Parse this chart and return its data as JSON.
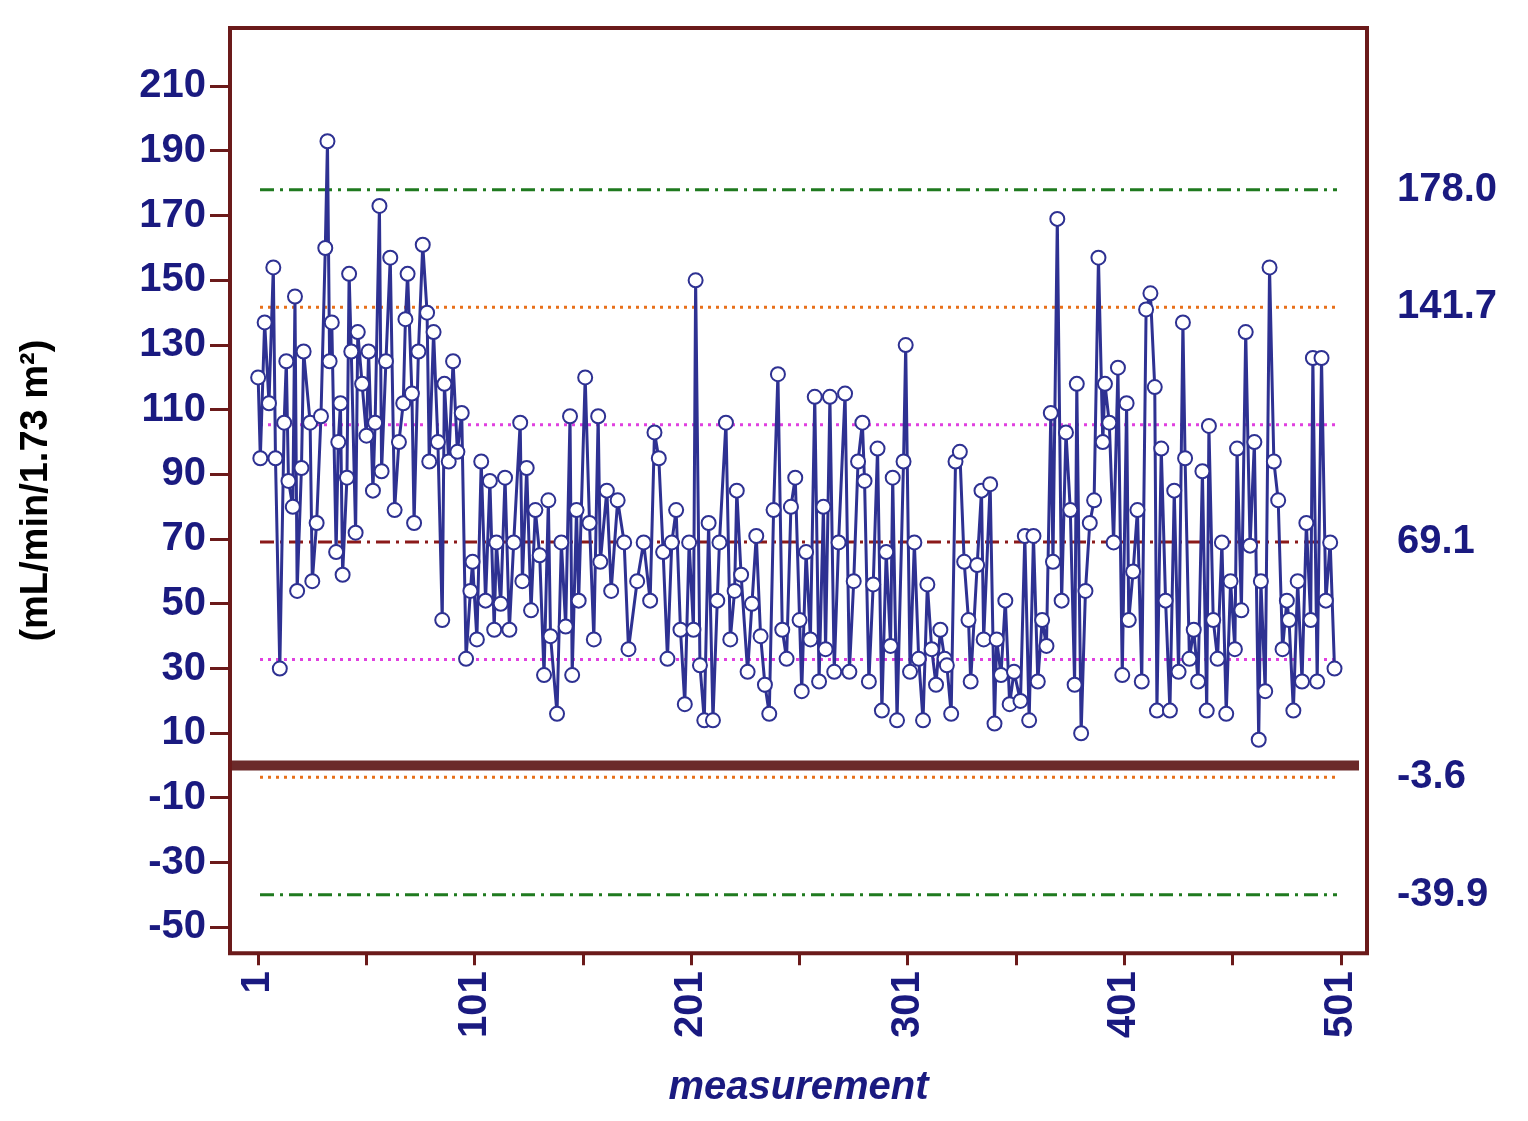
{
  "chart_data": {
    "type": "line",
    "xlabel": "measurement",
    "ylabel": "(mL/min/1.73 m²)",
    "xlim": [
      -12,
      513
    ],
    "ylim": [
      -58,
      228
    ],
    "xticks": [
      1,
      {
        "value": 51,
        "label": null
      },
      101,
      {
        "value": 151,
        "label": null
      },
      201,
      {
        "value": 251,
        "label": null
      },
      301,
      {
        "value": 351,
        "label": null
      },
      401,
      {
        "value": 451,
        "label": null
      },
      501
    ],
    "yticks": [
      -50,
      -30,
      -10,
      10,
      30,
      50,
      70,
      90,
      110,
      130,
      150,
      170,
      190,
      210
    ],
    "grid": false,
    "legend": false,
    "marker": "circle",
    "line_style": "solid",
    "series": [
      {
        "color": "#2e3192",
        "x": [
          1,
          2,
          4,
          6,
          8,
          9,
          11,
          13,
          14,
          15,
          17,
          18,
          19,
          21,
          22,
          25,
          26,
          28,
          30,
          32,
          33,
          34,
          35,
          37,
          38,
          39,
          40,
          42,
          43,
          44,
          46,
          47,
          49,
          51,
          52,
          54,
          55,
          57,
          58,
          60,
          62,
          64,
          66,
          68,
          69,
          70,
          72,
          73,
          75,
          77,
          79,
          80,
          82,
          84,
          86,
          87,
          89,
          91,
          93,
          95,
          97,
          99,
          100,
          102,
          104,
          106,
          108,
          110,
          111,
          113,
          115,
          117,
          119,
          122,
          123,
          125,
          127,
          129,
          131,
          133,
          135,
          136,
          139,
          141,
          143,
          145,
          146,
          148,
          149,
          152,
          154,
          156,
          158,
          159,
          162,
          164,
          167,
          170,
          172,
          176,
          179,
          182,
          184,
          186,
          188,
          190,
          192,
          194,
          196,
          198,
          200,
          202,
          203,
          205,
          207,
          209,
          211,
          213,
          214,
          217,
          219,
          221,
          222,
          224,
          227,
          229,
          231,
          233,
          235,
          237,
          239,
          241,
          243,
          245,
          247,
          249,
          251,
          252,
          254,
          256,
          258,
          260,
          262,
          263,
          265,
          267,
          269,
          272,
          274,
          276,
          278,
          280,
          281,
          283,
          285,
          287,
          289,
          291,
          293,
          294,
          296,
          299,
          300,
          302,
          304,
          306,
          308,
          310,
          312,
          314,
          316,
          318,
          319,
          321,
          323,
          325,
          327,
          329,
          330,
          333,
          335,
          336,
          339,
          341,
          342,
          344,
          346,
          348,
          350,
          353,
          355,
          357,
          359,
          361,
          363,
          365,
          367,
          368,
          370,
          372,
          374,
          376,
          378,
          379,
          381,
          383,
          385,
          387,
          389,
          391,
          392,
          394,
          396,
          398,
          400,
          402,
          403,
          405,
          407,
          409,
          411,
          413,
          415,
          416,
          418,
          420,
          422,
          424,
          426,
          428,
          429,
          431,
          433,
          435,
          437,
          439,
          440,
          442,
          444,
          446,
          448,
          450,
          452,
          453,
          455,
          457,
          459,
          461,
          463,
          464,
          466,
          468,
          470,
          472,
          474,
          476,
          477,
          479,
          481,
          483,
          485,
          487,
          488,
          490,
          492,
          494,
          496,
          498
        ],
        "values": [
          120,
          95,
          137,
          112,
          154,
          95,
          30,
          106,
          125,
          88,
          80,
          145,
          54,
          92,
          128,
          106,
          57,
          75,
          108,
          160,
          193,
          125,
          137,
          66,
          100,
          112,
          59,
          89,
          152,
          128,
          72,
          134,
          118,
          102,
          128,
          85,
          106,
          173,
          91,
          125,
          157,
          79,
          100,
          112,
          138,
          152,
          115,
          75,
          128,
          161,
          140,
          94,
          134,
          100,
          45,
          118,
          94,
          125,
          97,
          109,
          33,
          54,
          63,
          39,
          94,
          51,
          88,
          42,
          69,
          50,
          89,
          42,
          69,
          106,
          57,
          92,
          48,
          79,
          65,
          28,
          82,
          40,
          16,
          69,
          43,
          108,
          28,
          79,
          51,
          120,
          75,
          39,
          108,
          63,
          85,
          54,
          82,
          69,
          36,
          57,
          69,
          51,
          103,
          95,
          66,
          33,
          69,
          79,
          42,
          19,
          69,
          42,
          150,
          31,
          14,
          75,
          14,
          51,
          69,
          106,
          39,
          54,
          85,
          59,
          29,
          50,
          71,
          40,
          25,
          16,
          79,
          121,
          42,
          33,
          80,
          89,
          45,
          23,
          66,
          39,
          114,
          26,
          80,
          36,
          114,
          29,
          69,
          115,
          29,
          57,
          94,
          106,
          88,
          26,
          56,
          98,
          17,
          66,
          37,
          89,
          14,
          94,
          130,
          29,
          69,
          33,
          14,
          56,
          36,
          25,
          42,
          33,
          31,
          16,
          94,
          97,
          63,
          45,
          26,
          62,
          85,
          39,
          87,
          13,
          39,
          28,
          51,
          19,
          29,
          20,
          71,
          14,
          71,
          26,
          45,
          37,
          109,
          63,
          169,
          51,
          103,
          79,
          25,
          118,
          10,
          54,
          75,
          82,
          157,
          100,
          118,
          106,
          69,
          123,
          28,
          112,
          45,
          60,
          79,
          26,
          141,
          146,
          117,
          17,
          98,
          51,
          17,
          85,
          29,
          137,
          95,
          33,
          42,
          26,
          91,
          17,
          105,
          45,
          33,
          69,
          16,
          57,
          36,
          98,
          48,
          134,
          68,
          100,
          8,
          57,
          23,
          154,
          94,
          82,
          36,
          51,
          45,
          17,
          57,
          26,
          75,
          45,
          126,
          26,
          126,
          51,
          69,
          30
        ]
      }
    ],
    "ref_lines": [
      {
        "axis": "y",
        "value": 178.0,
        "label": "178.0",
        "color": "#1f7a1f",
        "line_style": "dashed"
      },
      {
        "axis": "y",
        "value": 141.7,
        "label": "141.7",
        "color": "#e8701a",
        "line_style": "dotted"
      },
      {
        "axis": "y",
        "value": 105.4,
        "color": "#e040e0",
        "line_style": "dotted"
      },
      {
        "axis": "y",
        "value": 69.1,
        "label": "69.1",
        "color": "#8b1a1a",
        "line_style": "dashed"
      },
      {
        "axis": "y",
        "value": 32.8,
        "color": "#e040e0",
        "line_style": "dotted"
      },
      {
        "axis": "y",
        "value": 0,
        "color": "#6b2a2a",
        "line_style": "solid"
      },
      {
        "axis": "y",
        "value": -3.6,
        "label": "-3.6",
        "color": "#e8701a",
        "line_style": "dotted"
      },
      {
        "axis": "y",
        "value": -39.9,
        "label": "-39.9",
        "color": "#1f7a1f",
        "line_style": "dashed"
      }
    ]
  }
}
